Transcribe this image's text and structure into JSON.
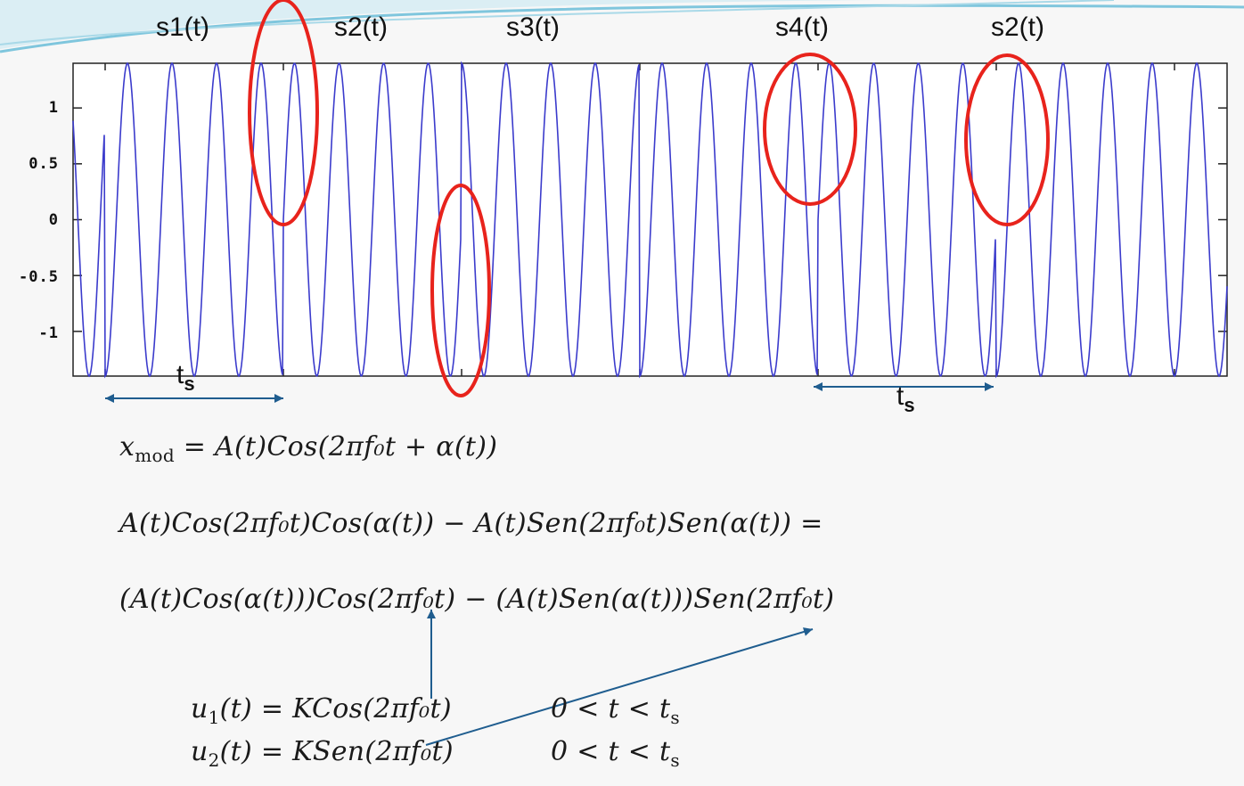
{
  "chart_data": {
    "type": "line",
    "title": "",
    "xlabel": "",
    "ylabel": "",
    "ylim": [
      -1.4,
      1.4
    ],
    "yticks": [
      {
        "value": 1,
        "label": "1"
      },
      {
        "value": 0.5,
        "label": "0.5"
      },
      {
        "value": 0,
        "label": "0"
      },
      {
        "value": -0.5,
        "label": "-0.5"
      },
      {
        "value": -1,
        "label": "-1"
      }
    ],
    "symbols_per_frame": 6.5,
    "cycles_per_symbol": 4,
    "amplitude": 1.4,
    "symbol_phase_starts_deg": [
      -50,
      180,
      270,
      0,
      180,
      270,
      180
    ],
    "segment_labels": [
      "s1(t)",
      "s2(t)",
      "s3(t)",
      "s4(t)",
      "s2(t)"
    ],
    "period_label": "t",
    "period_subscript": "s"
  },
  "equations": {
    "line1": {
      "text": "x",
      "sub": "mod",
      "rest": " = A(t)Cos(2πf₀t + α(t))"
    },
    "line2": "A(t)Cos(2πf₀t)Cos(α(t)) − A(t)Sen(2πf₀t)Sen(α(t)) =",
    "line3": "(A(t)Cos(α(t)))Cos(2πf₀t) − (A(t)Sen(α(t)))Sen(2πf₀t)",
    "u1": {
      "name": "u",
      "sub": "1",
      "def": "(t) = KCos(2πf₀t)",
      "range": "0 < t < t",
      "range_sub": "s"
    },
    "u2": {
      "name": "u",
      "sub": "2",
      "def": "(t) = KSen(2πf₀t)",
      "range": "0 < t < t",
      "range_sub": "s"
    }
  },
  "colors": {
    "signal": "#3b3bcc",
    "highlight": "#e8231c",
    "arrow": "#1f5d8f",
    "frame": "#222222"
  }
}
